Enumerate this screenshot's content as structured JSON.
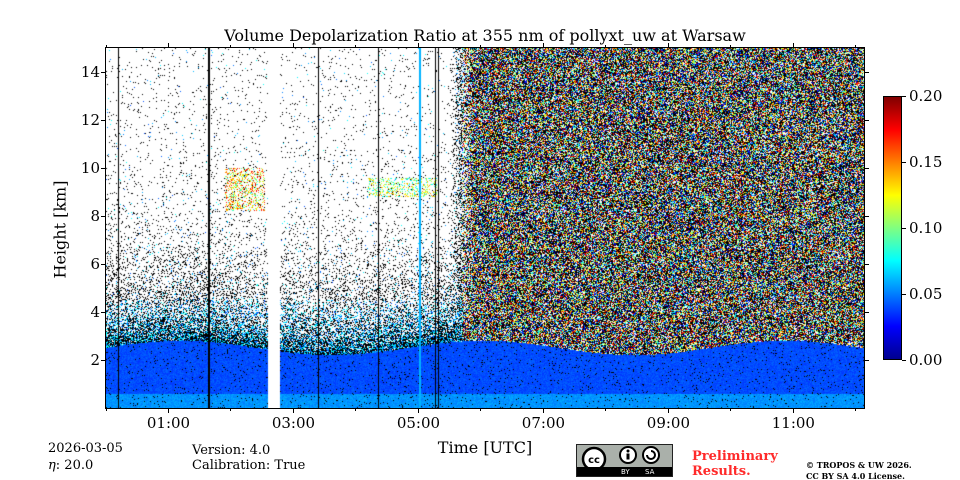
{
  "chart_data": {
    "type": "heatmap",
    "title": "Volume Depolarization Ratio at 355 nm of pollyxt_uw at Warsaw",
    "xlabel": "Time [UTC]",
    "ylabel": "Height [km]",
    "x_range_hours": [
      0.0,
      12.13
    ],
    "ylim": [
      0,
      15
    ],
    "x_ticks": [
      "01:00",
      "03:00",
      "05:00",
      "07:00",
      "09:00",
      "11:00"
    ],
    "x_tick_hours": [
      1,
      3,
      5,
      7,
      9,
      11
    ],
    "y_ticks": [
      "2",
      "4",
      "6",
      "8",
      "10",
      "12",
      "14"
    ],
    "y_tick_values": [
      2,
      4,
      6,
      8,
      10,
      12,
      14
    ],
    "colorbar": {
      "colormap": "jet",
      "range": [
        0.0,
        0.2
      ],
      "ticks": [
        "0.00",
        "0.05",
        "0.10",
        "0.15",
        "0.20"
      ],
      "tick_values": [
        0,
        0.05,
        0.1,
        0.15,
        0.2
      ]
    },
    "data_gap_hours": [
      2.59,
      2.79
    ],
    "features": [
      {
        "name": "boundary layer",
        "height_km": [
          0,
          2.5
        ],
        "value": 0.035
      },
      {
        "name": "aerosol layer",
        "time_hours": [
          1.9,
          2.55
        ],
        "height_km": [
          8.2,
          10
        ],
        "value": 0.12
      },
      {
        "name": "thin layer",
        "time_hours": [
          4.2,
          5.3
        ],
        "height_km": [
          8.8,
          9.6
        ],
        "value": 0.1
      },
      {
        "name": "noisy daytime signal",
        "time_hours": [
          5.6,
          12.13
        ],
        "height_km": [
          3,
          15
        ]
      }
    ]
  },
  "footer": {
    "date": "2026-03-05",
    "eta": ": 20.0",
    "eta_symbol": "η",
    "version": "Version: 4.0",
    "calibration": "Calibration: True",
    "preliminary_1": "Preliminary",
    "preliminary_2": "Results.",
    "copyright_1": "© TROPOS & UW 2026.",
    "copyright_2": "CC BY SA 4.0 License.",
    "license_logo": "cc by sa",
    "logo_by": "BY",
    "logo_sa": "SA"
  },
  "colors": {
    "preliminary": "#ff2a2a"
  }
}
